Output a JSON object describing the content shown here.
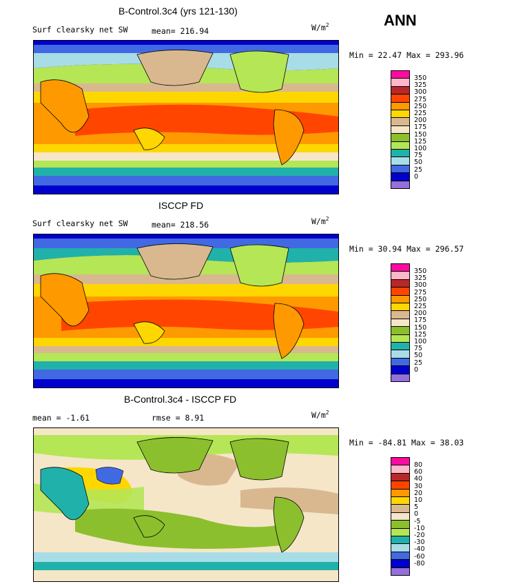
{
  "season": "ANN",
  "units_base": "W/m",
  "units_exp": "2",
  "panels": [
    {
      "title": "B-Control.3c4 (yrs 121-130)",
      "field": "Surf clearsky net SW",
      "mean_label": "mean= 216.94",
      "minmax": "Min =   22.47  Max =  293.96",
      "levels": [
        "350",
        "325",
        "300",
        "275",
        "250",
        "225",
        "200",
        "175",
        "150",
        "125",
        "100",
        "75",
        "50",
        "25",
        "0"
      ]
    },
    {
      "title": "ISCCP FD",
      "field": "Surf clearsky net SW",
      "mean_label": "mean= 218.56",
      "minmax": "Min =   30.94  Max =  296.57",
      "levels": [
        "350",
        "325",
        "300",
        "275",
        "250",
        "225",
        "200",
        "175",
        "150",
        "125",
        "100",
        "75",
        "50",
        "25",
        "0"
      ]
    },
    {
      "title": "B-Control.3c4 - ISCCP FD",
      "mean_label": "mean =   -1.61",
      "rmse_label": "rmse =    8.91",
      "minmax": "Min = -84.81  Max =   38.03",
      "levels": [
        "80",
        "60",
        "40",
        "30",
        "20",
        "10",
        "5",
        "0",
        "-5",
        "-10",
        "-20",
        "-30",
        "-40",
        "-60",
        "-80"
      ]
    }
  ],
  "colors": {
    "scale": [
      "#ff0aa0",
      "#ffb6c8",
      "#b82828",
      "#ff4500",
      "#ff9900",
      "#ffd700",
      "#d9b890",
      "#f5e6c8",
      "#8cbf2d",
      "#b5e655",
      "#20b2aa",
      "#a8dde8",
      "#4169e1",
      "#0000cd",
      "#9370db"
    ]
  }
}
